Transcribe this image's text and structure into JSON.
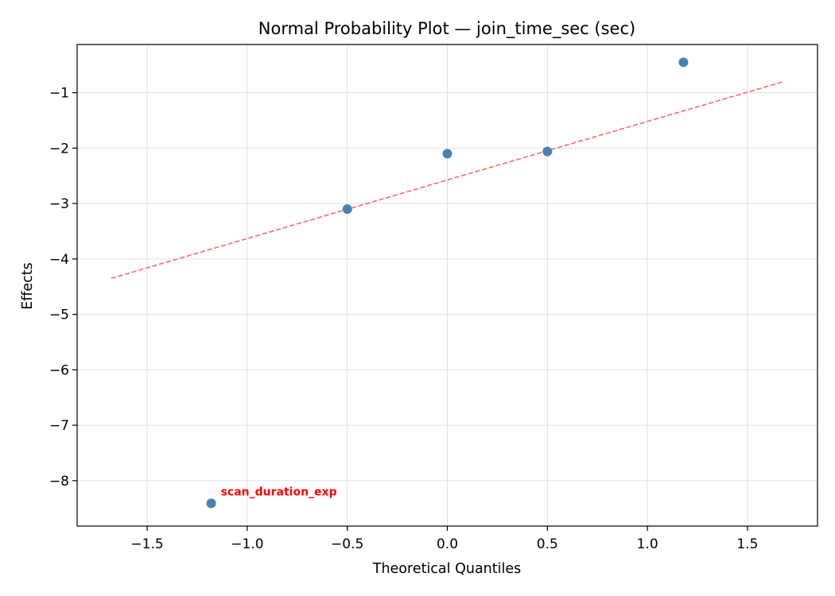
{
  "chart_data": {
    "type": "scatter",
    "title": "Normal Probability Plot — join_time_sec (sec)",
    "xlabel": "Theoretical Quantiles",
    "ylabel": "Effects",
    "xlim": [
      -1.85,
      1.85
    ],
    "ylim": [
      -8.82,
      -0.13
    ],
    "xticks": [
      -1.5,
      -1.0,
      -0.5,
      0.0,
      0.5,
      1.0,
      1.5
    ],
    "xtick_labels": [
      "−1.5",
      "−1.0",
      "−0.5",
      "0.0",
      "0.5",
      "1.0",
      "1.5"
    ],
    "yticks": [
      -8,
      -7,
      -6,
      -5,
      -4,
      -3,
      -2,
      -1
    ],
    "ytick_labels": [
      "−8",
      "−7",
      "−6",
      "−5",
      "−4",
      "−3",
      "−2",
      "−1"
    ],
    "grid": true,
    "points": [
      {
        "x": -1.18,
        "y": -8.41
      },
      {
        "x": -0.5,
        "y": -3.1
      },
      {
        "x": 0.0,
        "y": -2.1
      },
      {
        "x": 0.5,
        "y": -2.06
      },
      {
        "x": 1.18,
        "y": -0.45
      }
    ],
    "reference_line": {
      "x": [
        -1.68,
        1.68
      ],
      "y": [
        -4.35,
        -0.8
      ]
    },
    "annotations": [
      {
        "text": "scan_duration_exp",
        "x": -1.18,
        "y": -8.41,
        "color": "#ff0000"
      }
    ],
    "colors": {
      "points": "#4682b4",
      "line": "#ff6666",
      "grid": "#e0e0e0",
      "annotation": "#ff0000"
    }
  }
}
